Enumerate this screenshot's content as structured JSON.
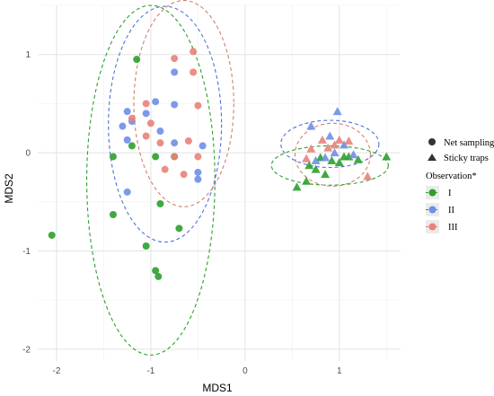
{
  "chart_data": {
    "type": "scatter",
    "xlabel": "MDS1",
    "ylabel": "MDS2",
    "xlim": [
      -2.2,
      1.65
    ],
    "ylim": [
      -2.12,
      1.5
    ],
    "x_ticks": [
      -2,
      -1,
      0,
      1
    ],
    "y_ticks": [
      -2,
      -1,
      0,
      1
    ],
    "grid": true,
    "legend_position": "right",
    "shape_legend": {
      "entries": [
        {
          "label": "Net sampling",
          "shape": "circle"
        },
        {
          "label": "Sticky traps",
          "shape": "triangle"
        }
      ]
    },
    "color_legend": {
      "title": "Observation*",
      "entries": [
        {
          "label": "I",
          "color": "#2ca02c"
        },
        {
          "label": "II",
          "color": "#6e8ee8"
        },
        {
          "label": "III",
          "color": "#e8827a"
        }
      ]
    },
    "series": [
      {
        "name": "I",
        "color": "#2ca02c",
        "points": [
          {
            "x": -1.15,
            "y": 0.95,
            "shape": "circle"
          },
          {
            "x": -1.4,
            "y": -0.04,
            "shape": "circle"
          },
          {
            "x": -1.2,
            "y": 0.07,
            "shape": "circle"
          },
          {
            "x": -0.95,
            "y": -0.04,
            "shape": "circle"
          },
          {
            "x": -0.75,
            "y": -0.04,
            "shape": "circle"
          },
          {
            "x": -0.9,
            "y": -0.52,
            "shape": "circle"
          },
          {
            "x": -0.7,
            "y": -0.77,
            "shape": "circle"
          },
          {
            "x": -1.4,
            "y": -0.63,
            "shape": "circle"
          },
          {
            "x": -2.05,
            "y": -0.84,
            "shape": "circle"
          },
          {
            "x": -1.05,
            "y": -0.95,
            "shape": "circle"
          },
          {
            "x": -0.95,
            "y": -1.2,
            "shape": "circle"
          },
          {
            "x": -0.92,
            "y": -1.26,
            "shape": "circle"
          },
          {
            "x": 0.55,
            "y": -0.35,
            "shape": "triangle"
          },
          {
            "x": 0.65,
            "y": -0.29,
            "shape": "triangle"
          },
          {
            "x": 0.68,
            "y": -0.13,
            "shape": "triangle"
          },
          {
            "x": 0.75,
            "y": -0.17,
            "shape": "triangle"
          },
          {
            "x": 0.8,
            "y": -0.05,
            "shape": "triangle"
          },
          {
            "x": 0.92,
            "y": -0.08,
            "shape": "triangle"
          },
          {
            "x": 1.0,
            "y": -0.1,
            "shape": "triangle"
          },
          {
            "x": 1.05,
            "y": -0.04,
            "shape": "triangle"
          },
          {
            "x": 1.1,
            "y": -0.04,
            "shape": "triangle"
          },
          {
            "x": 1.2,
            "y": -0.07,
            "shape": "triangle"
          },
          {
            "x": 1.5,
            "y": -0.04,
            "shape": "triangle"
          },
          {
            "x": 0.85,
            "y": -0.22,
            "shape": "triangle"
          }
        ]
      },
      {
        "name": "II",
        "color": "#6e8ee8",
        "points": [
          {
            "x": -0.75,
            "y": 0.82,
            "shape": "circle"
          },
          {
            "x": -0.95,
            "y": 0.52,
            "shape": "circle"
          },
          {
            "x": -0.75,
            "y": 0.49,
            "shape": "circle"
          },
          {
            "x": -1.25,
            "y": 0.42,
            "shape": "circle"
          },
          {
            "x": -1.05,
            "y": 0.4,
            "shape": "circle"
          },
          {
            "x": -1.2,
            "y": 0.32,
            "shape": "circle"
          },
          {
            "x": -1.3,
            "y": 0.27,
            "shape": "circle"
          },
          {
            "x": -0.9,
            "y": 0.22,
            "shape": "circle"
          },
          {
            "x": -1.25,
            "y": 0.13,
            "shape": "circle"
          },
          {
            "x": -0.75,
            "y": 0.1,
            "shape": "circle"
          },
          {
            "x": -0.45,
            "y": 0.07,
            "shape": "circle"
          },
          {
            "x": -0.5,
            "y": -0.2,
            "shape": "circle"
          },
          {
            "x": -0.5,
            "y": -0.27,
            "shape": "circle"
          },
          {
            "x": -1.25,
            "y": -0.4,
            "shape": "circle"
          },
          {
            "x": 0.7,
            "y": 0.27,
            "shape": "triangle"
          },
          {
            "x": 0.98,
            "y": 0.42,
            "shape": "triangle"
          },
          {
            "x": 0.9,
            "y": 0.17,
            "shape": "triangle"
          },
          {
            "x": 1.05,
            "y": 0.08,
            "shape": "triangle"
          },
          {
            "x": 0.95,
            "y": 0.0,
            "shape": "triangle"
          },
          {
            "x": 0.85,
            "y": -0.05,
            "shape": "triangle"
          },
          {
            "x": 1.15,
            "y": -0.02,
            "shape": "triangle"
          },
          {
            "x": 0.75,
            "y": -0.08,
            "shape": "triangle"
          }
        ]
      },
      {
        "name": "III",
        "color": "#e8827a",
        "points": [
          {
            "x": -0.55,
            "y": 1.03,
            "shape": "circle"
          },
          {
            "x": -0.75,
            "y": 0.96,
            "shape": "circle"
          },
          {
            "x": -0.55,
            "y": 0.82,
            "shape": "circle"
          },
          {
            "x": -1.05,
            "y": 0.5,
            "shape": "circle"
          },
          {
            "x": -0.5,
            "y": 0.48,
            "shape": "circle"
          },
          {
            "x": -1.0,
            "y": 0.3,
            "shape": "circle"
          },
          {
            "x": -1.2,
            "y": 0.35,
            "shape": "circle"
          },
          {
            "x": -0.6,
            "y": 0.12,
            "shape": "circle"
          },
          {
            "x": -1.05,
            "y": 0.17,
            "shape": "circle"
          },
          {
            "x": -0.9,
            "y": 0.1,
            "shape": "circle"
          },
          {
            "x": -0.75,
            "y": -0.04,
            "shape": "circle"
          },
          {
            "x": -0.5,
            "y": -0.04,
            "shape": "circle"
          },
          {
            "x": -0.85,
            "y": -0.17,
            "shape": "circle"
          },
          {
            "x": -0.65,
            "y": -0.22,
            "shape": "circle"
          },
          {
            "x": 0.82,
            "y": 0.13,
            "shape": "triangle"
          },
          {
            "x": 1.0,
            "y": 0.13,
            "shape": "triangle"
          },
          {
            "x": 1.1,
            "y": 0.12,
            "shape": "triangle"
          },
          {
            "x": 0.7,
            "y": 0.04,
            "shape": "triangle"
          },
          {
            "x": 0.88,
            "y": 0.05,
            "shape": "triangle"
          },
          {
            "x": 0.95,
            "y": 0.08,
            "shape": "triangle"
          },
          {
            "x": 0.65,
            "y": -0.06,
            "shape": "triangle"
          },
          {
            "x": 1.3,
            "y": -0.24,
            "shape": "triangle"
          }
        ]
      }
    ],
    "ellipses": [
      {
        "group": "I",
        "color": "#2ca02c",
        "cx": -1.0,
        "cy": -0.28,
        "rx": 0.68,
        "ry": 1.78
      },
      {
        "group": "II",
        "color": "#4e74d8",
        "cx": -0.85,
        "cy": 0.29,
        "rx": 0.6,
        "ry": 1.2
      },
      {
        "group": "III",
        "color": "#d2806b",
        "cx": -0.65,
        "cy": 0.5,
        "rx": 0.53,
        "ry": 1.05
      },
      {
        "group": "I",
        "color": "#2ca02c",
        "cx": 0.9,
        "cy": -0.13,
        "rx": 0.62,
        "ry": 0.2
      },
      {
        "group": "II",
        "color": "#4e74d8",
        "cx": 0.9,
        "cy": 0.09,
        "rx": 0.52,
        "ry": 0.24
      },
      {
        "group": "III",
        "color": "#d2806b",
        "cx": 0.93,
        "cy": -0.02,
        "rx": 0.4,
        "ry": 0.32
      }
    ]
  }
}
